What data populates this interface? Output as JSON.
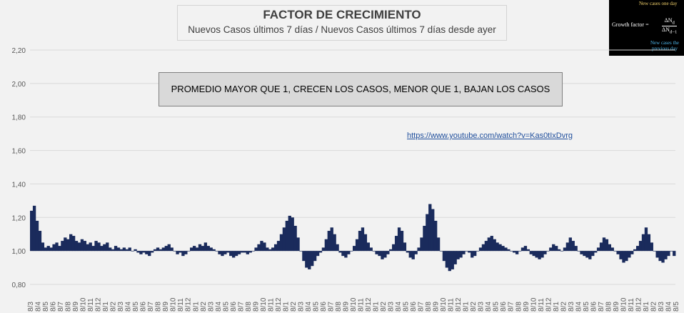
{
  "header": {
    "title": "FACTOR DE CRECIMIENTO",
    "subtitle": "Nuevos Casos últimos 7 días / Nuevos Casos últimos 7 días desde ayer"
  },
  "inset": {
    "top_label": "New cases one day",
    "lhs": "Growth factor =",
    "numerator": "ΔN",
    "numerator_sub": "d",
    "denominator": "ΔN",
    "denominator_sub": "d−1",
    "bottom_label_1": "New cases the",
    "bottom_label_2": "previous day"
  },
  "annotation": "PROMEDIO MAYOR QUE 1, CRECEN LOS CASOS, MENOR QUE 1, BAJAN LOS CASOS",
  "link_text": "https://www.youtube.com/watch?v=Kas0tIxDvrg",
  "colors": {
    "series": "#1a2b5c",
    "grid": "#d9d9d9",
    "axis_text": "#595959"
  },
  "chart_data": {
    "type": "area",
    "title": "FACTOR DE CRECIMIENTO",
    "subtitle": "Nuevos Casos últimos 7 días / Nuevos Casos últimos 7 días desde ayer",
    "baseline": 1.0,
    "ylim": [
      0.8,
      2.2
    ],
    "yticks": [
      "0,80",
      "1,00",
      "1,20",
      "1,40",
      "1,60",
      "1,80",
      "2,00",
      "2,20"
    ],
    "ytick_values": [
      0.8,
      1.0,
      1.2,
      1.4,
      1.6,
      1.8,
      2.0,
      2.2
    ],
    "grid": true,
    "xticks": [
      "8/3",
      "8/4",
      "8/5",
      "8/6",
      "8/7",
      "8/8",
      "8/9",
      "8/10",
      "8/11",
      "8/12",
      "8/1",
      "8/2",
      "8/3",
      "8/4",
      "8/5",
      "8/6",
      "8/7",
      "8/8",
      "8/9",
      "8/10",
      "8/11",
      "8/12",
      "8/1",
      "8/2",
      "8/3",
      "8/4",
      "8/5",
      "8/6",
      "8/7",
      "8/8",
      "8/9",
      "8/10",
      "8/11",
      "8/12",
      "8/1",
      "8/2",
      "8/3",
      "8/4",
      "8/5",
      "8/6",
      "8/7",
      "8/8",
      "8/9",
      "8/10",
      "8/11",
      "8/12",
      "8/1",
      "8/2",
      "8/3",
      "8/4",
      "8/5",
      "8/6",
      "8/7",
      "8/8",
      "8/9",
      "8/10",
      "8/11",
      "8/12",
      "8/1",
      "8/2",
      "8/3",
      "8/4",
      "8/5",
      "8/6",
      "8/7",
      "8/8",
      "8/9",
      "8/10",
      "8/11",
      "8/12",
      "8/1",
      "8/2",
      "8/3",
      "8/4",
      "8/5",
      "8/6",
      "8/7",
      "8/8",
      "8/9",
      "8/10",
      "8/11",
      "8/12",
      "8/1",
      "8/2",
      "8/3",
      "8/4",
      "8/5"
    ],
    "series": [
      {
        "values": [
          1.24,
          1.27,
          1.18,
          1.12,
          1.05,
          1.02,
          1.03,
          1.02,
          1.04,
          1.05,
          1.03,
          1.06,
          1.08,
          1.07,
          1.1,
          1.09,
          1.06,
          1.05,
          1.07,
          1.06,
          1.04,
          1.05,
          1.03,
          1.06,
          1.05,
          1.03,
          1.04,
          1.05,
          1.02,
          1.01,
          1.03,
          1.02,
          1.01,
          1.02,
          1.01,
          1.02,
          1.0,
          1.01,
          0.99,
          0.98,
          0.99,
          0.98,
          0.97,
          0.99,
          1.01,
          1.02,
          1.01,
          1.02,
          1.03,
          1.04,
          1.02,
          1.0,
          0.98,
          0.99,
          0.97,
          0.98,
          1.0,
          1.02,
          1.03,
          1.02,
          1.04,
          1.03,
          1.05,
          1.03,
          1.02,
          1.01,
          1.0,
          0.98,
          0.97,
          0.98,
          0.99,
          0.97,
          0.96,
          0.97,
          0.98,
          0.99,
          0.99,
          0.98,
          0.99,
          1.0,
          1.02,
          1.04,
          1.06,
          1.05,
          1.02,
          1.01,
          1.02,
          1.04,
          1.06,
          1.1,
          1.14,
          1.18,
          1.21,
          1.2,
          1.15,
          1.08,
          1.0,
          0.94,
          0.9,
          0.89,
          0.91,
          0.94,
          0.97,
          0.99,
          1.02,
          1.07,
          1.12,
          1.14,
          1.1,
          1.04,
          0.99,
          0.97,
          0.96,
          0.98,
          1.0,
          1.03,
          1.07,
          1.12,
          1.14,
          1.1,
          1.05,
          1.02,
          1.0,
          0.98,
          0.97,
          0.95,
          0.96,
          0.98,
          1.01,
          1.04,
          1.09,
          1.14,
          1.12,
          1.05,
          0.99,
          0.96,
          0.95,
          0.98,
          1.02,
          1.08,
          1.15,
          1.22,
          1.28,
          1.25,
          1.18,
          1.08,
          1.0,
          0.94,
          0.9,
          0.88,
          0.89,
          0.92,
          0.95,
          0.96,
          0.98,
          1.0,
          0.99,
          0.96,
          0.97,
          1.0,
          1.02,
          1.04,
          1.06,
          1.08,
          1.09,
          1.07,
          1.05,
          1.04,
          1.03,
          1.02,
          1.01,
          1.0,
          0.99,
          0.98,
          1.0,
          1.02,
          1.03,
          1.01,
          0.98,
          0.97,
          0.96,
          0.95,
          0.96,
          0.98,
          1.0,
          1.02,
          1.04,
          1.03,
          1.01,
          1.0,
          1.02,
          1.05,
          1.08,
          1.06,
          1.03,
          1.0,
          0.98,
          0.97,
          0.96,
          0.95,
          0.97,
          0.99,
          1.02,
          1.05,
          1.08,
          1.07,
          1.04,
          1.02,
          1.0,
          0.98,
          0.95,
          0.93,
          0.94,
          0.96,
          0.98,
          1.01,
          1.03,
          1.06,
          1.1,
          1.14,
          1.1,
          1.05,
          1.0,
          0.96,
          0.94,
          0.93,
          0.95,
          0.97,
          1.0,
          0.97
        ]
      }
    ]
  }
}
